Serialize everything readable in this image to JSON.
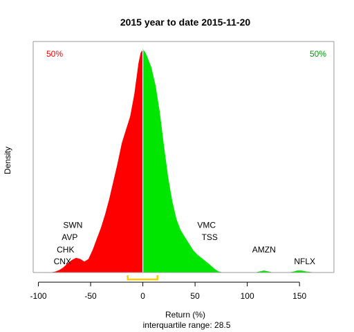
{
  "chart_data": {
    "type": "area",
    "title": "2015  year to date 2015-11-20",
    "xlabel": "Return (%)",
    "ylabel": "Density",
    "subtitle": "interquartile range: 28.5",
    "xlim": [
      -105,
      183
    ],
    "x_ticks": [
      -100,
      -50,
      0,
      50,
      100,
      150
    ],
    "x_tick_labels": [
      "-100",
      "-50",
      "0",
      "50",
      "100",
      "150"
    ],
    "split_at": 0,
    "left_pct_label": "50%",
    "right_pct_label": "50%",
    "colors": {
      "left": "#ff0000",
      "right": "#00e600",
      "iqr": "#ffcc00",
      "left_label": "#ff0000",
      "right_label": "#009900"
    },
    "iqr": [
      -14.5,
      14.0
    ],
    "density": {
      "x": [
        -88,
        -84,
        -80,
        -76,
        -72,
        -68,
        -64,
        -60,
        -56,
        -52,
        -48,
        -44,
        -40,
        -36,
        -32,
        -28,
        -24,
        -20,
        -16,
        -12,
        -8,
        -4,
        -2,
        0,
        2,
        4,
        8,
        12,
        16,
        20,
        24,
        28,
        32,
        36,
        40,
        44,
        48,
        52,
        56,
        60,
        64,
        68,
        72,
        76,
        80,
        84,
        88,
        92,
        96,
        100,
        104,
        108,
        112,
        116,
        120,
        124,
        128,
        132,
        136,
        140,
        144,
        148,
        152,
        156,
        160,
        164
      ],
      "y": [
        0,
        0.003,
        0.01,
        0.022,
        0.04,
        0.055,
        0.065,
        0.06,
        0.048,
        0.06,
        0.1,
        0.15,
        0.2,
        0.26,
        0.33,
        0.41,
        0.49,
        0.58,
        0.64,
        0.7,
        0.8,
        0.94,
        0.985,
        1.0,
        0.99,
        0.97,
        0.92,
        0.84,
        0.72,
        0.57,
        0.43,
        0.32,
        0.24,
        0.19,
        0.16,
        0.13,
        0.1,
        0.08,
        0.065,
        0.05,
        0.035,
        0.018,
        0.005,
        0,
        0,
        0,
        0,
        0,
        0,
        0,
        0,
        0,
        0.004,
        0.008,
        0.004,
        0,
        0,
        0,
        0,
        0,
        0.003,
        0.008,
        0.008,
        0.004,
        0.002,
        0
      ]
    },
    "annotations": [
      {
        "text": "SWN",
        "x": -67,
        "y": 0.212
      },
      {
        "text": "AVP",
        "x": -70,
        "y": 0.158
      },
      {
        "text": "CHK",
        "x": -74,
        "y": 0.102
      },
      {
        "text": "CNX",
        "x": -77,
        "y": 0.05
      },
      {
        "text": "VMC",
        "x": 61,
        "y": 0.212
      },
      {
        "text": "TSS",
        "x": 64,
        "y": 0.158
      },
      {
        "text": "AMZN",
        "x": 116,
        "y": 0.102
      },
      {
        "text": "NFLX",
        "x": 155,
        "y": 0.05
      }
    ]
  }
}
